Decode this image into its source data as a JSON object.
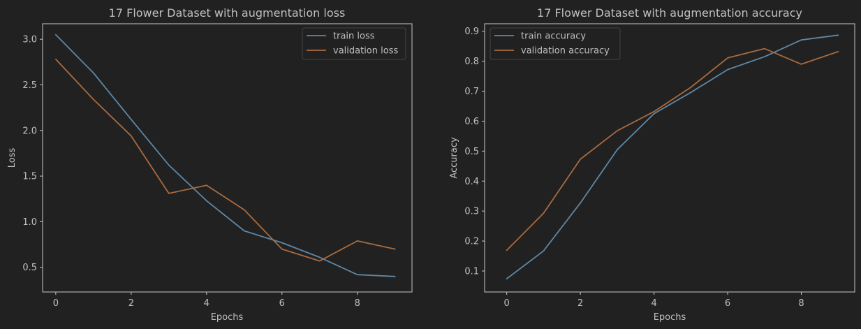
{
  "theme": {
    "background": "#212121",
    "axes_edge": "#c8c8c8",
    "text": "#c0c0c0",
    "legend_bg": "#212121",
    "legend_edge": "#444444"
  },
  "chart_data": [
    {
      "type": "line",
      "title": "17 Flower Dataset with augmentation loss",
      "xlabel": "Epochs",
      "ylabel": "Loss",
      "xlim": [
        -0.35,
        9.45
      ],
      "ylim": [
        0.23,
        3.17
      ],
      "xticks": [
        0,
        2,
        4,
        6,
        8
      ],
      "yticks": [
        0.5,
        1.0,
        1.5,
        2.0,
        2.5,
        3.0
      ],
      "ytick_labels": [
        "0.5",
        "1.0",
        "1.5",
        "2.0",
        "2.5",
        "3.0"
      ],
      "grid": false,
      "legend_position": "top-right",
      "x": [
        0,
        1,
        2,
        3,
        4,
        5,
        6,
        7,
        8,
        9
      ],
      "series": [
        {
          "name": "train loss",
          "color": "#5e87a6",
          "values": [
            3.05,
            2.63,
            2.12,
            1.62,
            1.23,
            0.9,
            0.77,
            0.61,
            0.42,
            0.4
          ]
        },
        {
          "name": "validation loss",
          "color": "#a86b3f",
          "values": [
            2.78,
            2.34,
            1.94,
            1.31,
            1.4,
            1.13,
            0.7,
            0.57,
            0.79,
            0.7
          ]
        }
      ]
    },
    {
      "type": "line",
      "title": "17 Flower Dataset with augmentation accuracy",
      "xlabel": "Epochs",
      "ylabel": "Accuracy",
      "xlim": [
        -0.6,
        9.45
      ],
      "ylim": [
        0.03,
        0.925
      ],
      "xticks": [
        0,
        2,
        4,
        6,
        8
      ],
      "yticks": [
        0.1,
        0.2,
        0.3,
        0.4,
        0.5,
        0.6,
        0.7,
        0.8,
        0.9
      ],
      "ytick_labels": [
        "0.1",
        "0.2",
        "0.3",
        "0.4",
        "0.5",
        "0.6",
        "0.7",
        "0.8",
        "0.9"
      ],
      "grid": false,
      "legend_position": "top-left",
      "x": [
        0,
        1,
        2,
        3,
        4,
        5,
        6,
        7,
        8,
        9
      ],
      "series": [
        {
          "name": "train accuracy",
          "color": "#5e87a6",
          "values": [
            0.074,
            0.167,
            0.327,
            0.505,
            0.625,
            0.696,
            0.772,
            0.815,
            0.871,
            0.887
          ]
        },
        {
          "name": "validation accuracy",
          "color": "#a86b3f",
          "values": [
            0.169,
            0.293,
            0.473,
            0.568,
            0.632,
            0.713,
            0.811,
            0.842,
            0.79,
            0.832
          ]
        }
      ]
    }
  ]
}
